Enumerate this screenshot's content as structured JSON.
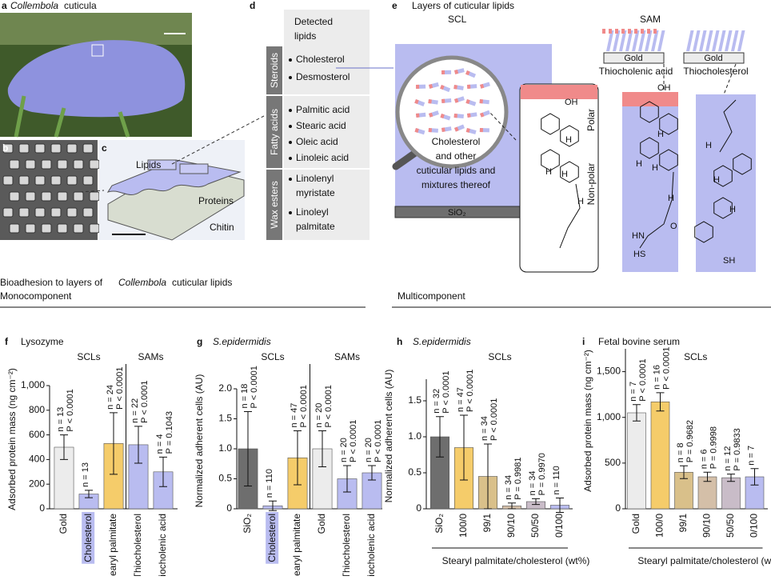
{
  "panel_a": {
    "letter": "a",
    "title_italic": "Collembola",
    "title_rest": "cuticula"
  },
  "panel_b": {
    "letter": "b"
  },
  "panel_c": {
    "letter": "c",
    "labels": [
      "Lipids",
      "Proteins",
      "Chitin"
    ]
  },
  "panel_d": {
    "letter": "d",
    "header": [
      "Detected",
      "lipids"
    ],
    "groups": [
      {
        "name": "Steroids",
        "items": [
          [
            "Cholesterol"
          ],
          [
            "Desmosterol"
          ]
        ]
      },
      {
        "name": "Fatty acids",
        "items": [
          [
            "Palmitic acid"
          ],
          [
            "Stearic acid"
          ],
          [
            "Oleic acid"
          ],
          [
            "Linoleic acid"
          ]
        ]
      },
      {
        "name": "Wax esters",
        "items": [
          [
            "Linolenyl",
            "myristate"
          ],
          [
            "Linoleyl",
            "palmitate"
          ]
        ]
      }
    ]
  },
  "panel_e": {
    "letter": "e",
    "title": "Layers of cuticular lipids",
    "scl": "SCL",
    "sam": "SAM",
    "magnifier_text": [
      "Cholesterol",
      "and other",
      "cuticular lipids and",
      "mixtures thereof"
    ],
    "substrate": "SiO₂",
    "polar": "Polar",
    "nonpolar": "Non-polar",
    "gold": [
      "Gold",
      "Gold"
    ],
    "sam_names": [
      "Thiocholenic acid",
      "Thiocholesterol"
    ],
    "mol1": [
      "OH",
      "H",
      "H",
      "H",
      "H"
    ],
    "mol2": [
      "OH",
      "H",
      "H",
      "H",
      "H",
      "O",
      "HN",
      "HS"
    ],
    "mol3": [
      "H",
      "H",
      "H",
      "SH"
    ]
  },
  "section": {
    "title_pre": "Bioadhesion to layers of",
    "title_italic": "Collembola",
    "title_post": "cuticular lipids",
    "mono": "Monocomponent",
    "multi": "Multicomponent"
  },
  "chart_data": [
    {
      "type": "bar",
      "letter": "f",
      "title": "Lysozyme",
      "title_italic": false,
      "groups": [
        "SCLs",
        "SAMs"
      ],
      "ylabel": "Adsorbed protein mass (ng cm⁻²)",
      "categories": [
        "Gold",
        "Cholesterol",
        "Stearyl palmitate",
        "Thiocholesterol",
        "Thiocholenic acid"
      ],
      "values": [
        500,
        120,
        530,
        520,
        300
      ],
      "errors": [
        100,
        30,
        250,
        150,
        120
      ],
      "colors": [
        "#ececec",
        "#b9bcf0",
        "#f5cc6a",
        "#b9bcf0",
        "#b9bcf0"
      ],
      "highlight": 1,
      "n_labels": [
        "n = 13",
        "n = 13",
        "n = 24",
        "n = 22",
        "n = 4"
      ],
      "p_labels": [
        "P < 0.0001",
        null,
        "P < 0.0001",
        "P < 0.0001",
        "P = 0.1043"
      ],
      "ylim": [
        0,
        1000
      ],
      "yticks": [
        0,
        200,
        400,
        600,
        800,
        {
          "value": 1000,
          "label": "1,000"
        }
      ]
    },
    {
      "type": "bar",
      "letter": "g",
      "title": "S.epidermidis",
      "title_italic": true,
      "groups": [
        "SCLs",
        "SAMs"
      ],
      "ylabel": "Normalized adherent cells (AU)",
      "categories": [
        "SiO₂",
        "Cholesterol",
        "Stearyl palmitate",
        "Gold",
        "Thiocholesterol",
        "Thiocholenic acid"
      ],
      "values": [
        1.0,
        0.05,
        0.85,
        1.0,
        0.5,
        0.6
      ],
      "errors": [
        0.62,
        0.08,
        0.45,
        0.3,
        0.22,
        0.12
      ],
      "colors": [
        "#6e6e6e",
        "#b9bcf0",
        "#f5cc6a",
        "#ececec",
        "#b9bcf0",
        "#b9bcf0"
      ],
      "highlight": 1,
      "n_labels": [
        "n = 18",
        "n = 110",
        "n = 47",
        "n = 20",
        "n = 20",
        "n = 20"
      ],
      "p_labels": [
        "P < 0.0001",
        null,
        "P < 0.0001",
        "P < 0.0001",
        "P < 0.0001",
        "P < 0.0001"
      ],
      "ylim": [
        0,
        2
      ],
      "yticks": [
        0,
        0.5,
        {
          "value": 1,
          "label": "1.0"
        },
        1.5,
        {
          "value": 2,
          "label": "2.0"
        }
      ]
    },
    {
      "type": "bar",
      "letter": "h",
      "title": "S.epidermidis",
      "title_italic": true,
      "groups": [
        "SCLs"
      ],
      "ylabel": "Normalized adherent cells (AU)",
      "xlabel": "Stearyl palmitate/cholesterol (wt%)",
      "categories": [
        "SiO₂",
        "100/0",
        "99/1",
        "90/10",
        "50/50",
        "0/100"
      ],
      "values": [
        1.0,
        0.85,
        0.45,
        0.04,
        0.1,
        0.05
      ],
      "errors": [
        0.28,
        0.45,
        0.45,
        0.04,
        0.04,
        0.1
      ],
      "colors": [
        "#6e6e6e",
        "#f5cc6a",
        "#d9c08a",
        "#d4bfa8",
        "#c9bcc8",
        "#b9bcf0"
      ],
      "n_labels": [
        "n = 32",
        "n = 47",
        "n = 34",
        "n = 34",
        "n = 34",
        "n = 110"
      ],
      "p_labels": [
        "P < 0.0001",
        "P < 0.0001",
        "P < 0.0001",
        "P = 0.9981",
        "P = 0.9970",
        null
      ],
      "ylim": [
        0,
        1.8
      ],
      "yticks": [
        0,
        0.5,
        {
          "value": 1,
          "label": "1.0"
        },
        1.5
      ]
    },
    {
      "type": "bar",
      "letter": "i",
      "title": "Fetal bovine serum",
      "title_italic": false,
      "groups": [
        "SCLs"
      ],
      "ylabel": "Adsorbed protein mass (ng cm⁻²)",
      "xlabel": "Stearyl palmitate/cholesterol (wt%)",
      "categories": [
        "Gold",
        "100/0",
        "99/1",
        "90/10",
        "50/50",
        "0/100"
      ],
      "values": [
        1050,
        1170,
        400,
        350,
        340,
        350
      ],
      "errors": [
        90,
        100,
        70,
        50,
        40,
        90
      ],
      "colors": [
        "#ececec",
        "#f5cc6a",
        "#d9c08a",
        "#d4bfa8",
        "#c9bcc8",
        "#b9bcf0"
      ],
      "n_labels": [
        "n = 7",
        "n = 16",
        "n = 8",
        "n = 6",
        "n = 12",
        "n = 7"
      ],
      "p_labels": [
        "P < 0.0001",
        "P < 0.0001",
        "P = 0.9682",
        "P = 0.9998",
        "P = 0.9833",
        null
      ],
      "ylim": [
        0,
        1750
      ],
      "yticks": [
        0,
        500,
        {
          "value": 1000,
          "label": "1,000"
        },
        {
          "value": 1500,
          "label": "1,500"
        }
      ]
    }
  ]
}
